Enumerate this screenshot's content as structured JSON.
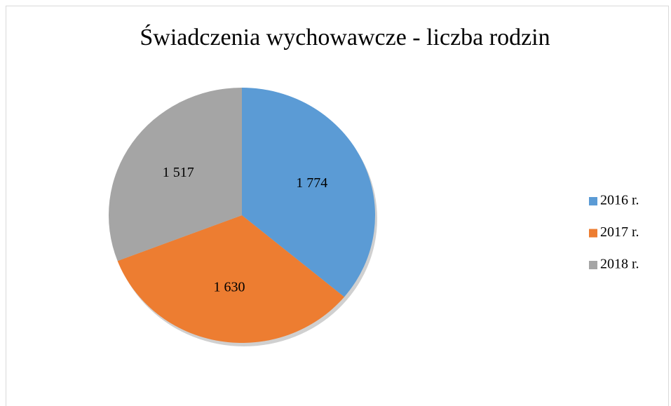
{
  "chart_data": {
    "type": "pie",
    "title": "Świadczenia wychowawcze - liczba rodzin",
    "categories": [
      "2016 r.",
      "2017 r.",
      "2018 r."
    ],
    "values": [
      1774,
      1630,
      1517
    ],
    "value_labels": [
      "1 774",
      "1 630",
      "1 517"
    ],
    "colors": [
      "#5b9bd5",
      "#ed7d31",
      "#a5a5a5"
    ],
    "legend": "right"
  }
}
